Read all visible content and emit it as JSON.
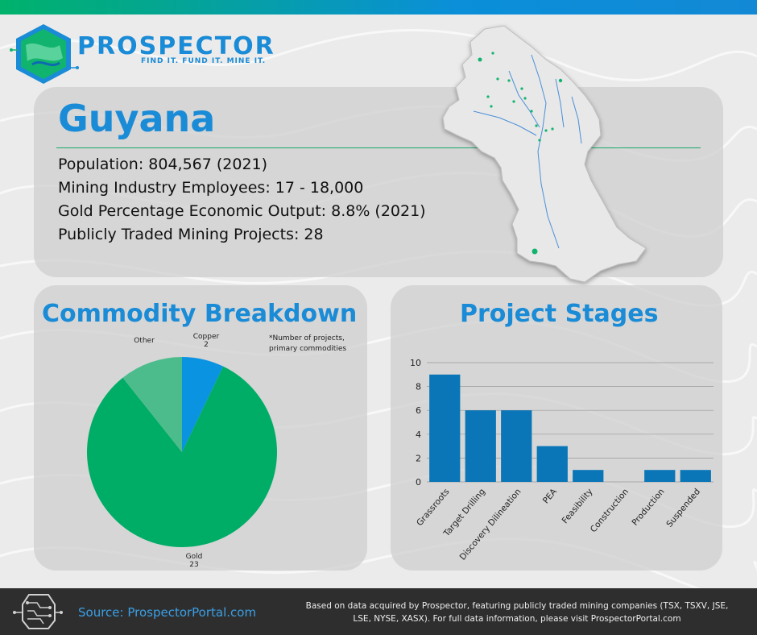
{
  "brand": {
    "name": "PROSPECTOR",
    "tagline": "FIND IT. FUND IT. MINE IT."
  },
  "country": {
    "name": "Guyana",
    "stats": [
      "Population:  804,567 (2021)",
      "Mining Industry Employees: 17 - 18,000",
      "Gold Percentage Economic Output: 8.8% (2021)",
      "Publicly Traded Mining Projects: 28"
    ]
  },
  "map": {
    "icon": "guyana-map"
  },
  "colors": {
    "brand_blue": "#1a8bd6",
    "gold_green": "#00ad66",
    "copper_blue": "#0a93e0",
    "other_green": "#4cbc8d",
    "bar_blue": "#0a76b8"
  },
  "chart_data": [
    {
      "type": "pie",
      "title": "Commodity Breakdown",
      "note": [
        "*Number of projects,",
        "primary commodities"
      ],
      "slices": [
        {
          "label": "Copper",
          "value": 2,
          "value_label": "2"
        },
        {
          "label": "Gold",
          "value": 23,
          "value_label": "23"
        },
        {
          "label": "Other",
          "value": 3,
          "value_label": ""
        }
      ]
    },
    {
      "type": "bar",
      "title": "Project Stages",
      "categories": [
        "Grassroots",
        "Target Drilling",
        "Discovery Dilineation",
        "PEA",
        "Feasibility",
        "Construction",
        "Production",
        "Suspended"
      ],
      "values": [
        9,
        6,
        6,
        3,
        1,
        0,
        1,
        1
      ],
      "ylim": [
        0,
        10
      ],
      "yticks": [
        "0",
        "2",
        "4",
        "6",
        "8",
        "10"
      ],
      "grid": true
    }
  ],
  "footer": {
    "source": "Source: ProspectorPortal.com",
    "disclaimer_lines": [
      "Based on data acquired by Prospector, featuring publicly traded mining companies (TSX, TSXV, JSE,",
      "LSE, NYSE, XASX). For full data information, please visit ProspectorPortal.com"
    ],
    "icon": "circuit-chip-icon"
  }
}
